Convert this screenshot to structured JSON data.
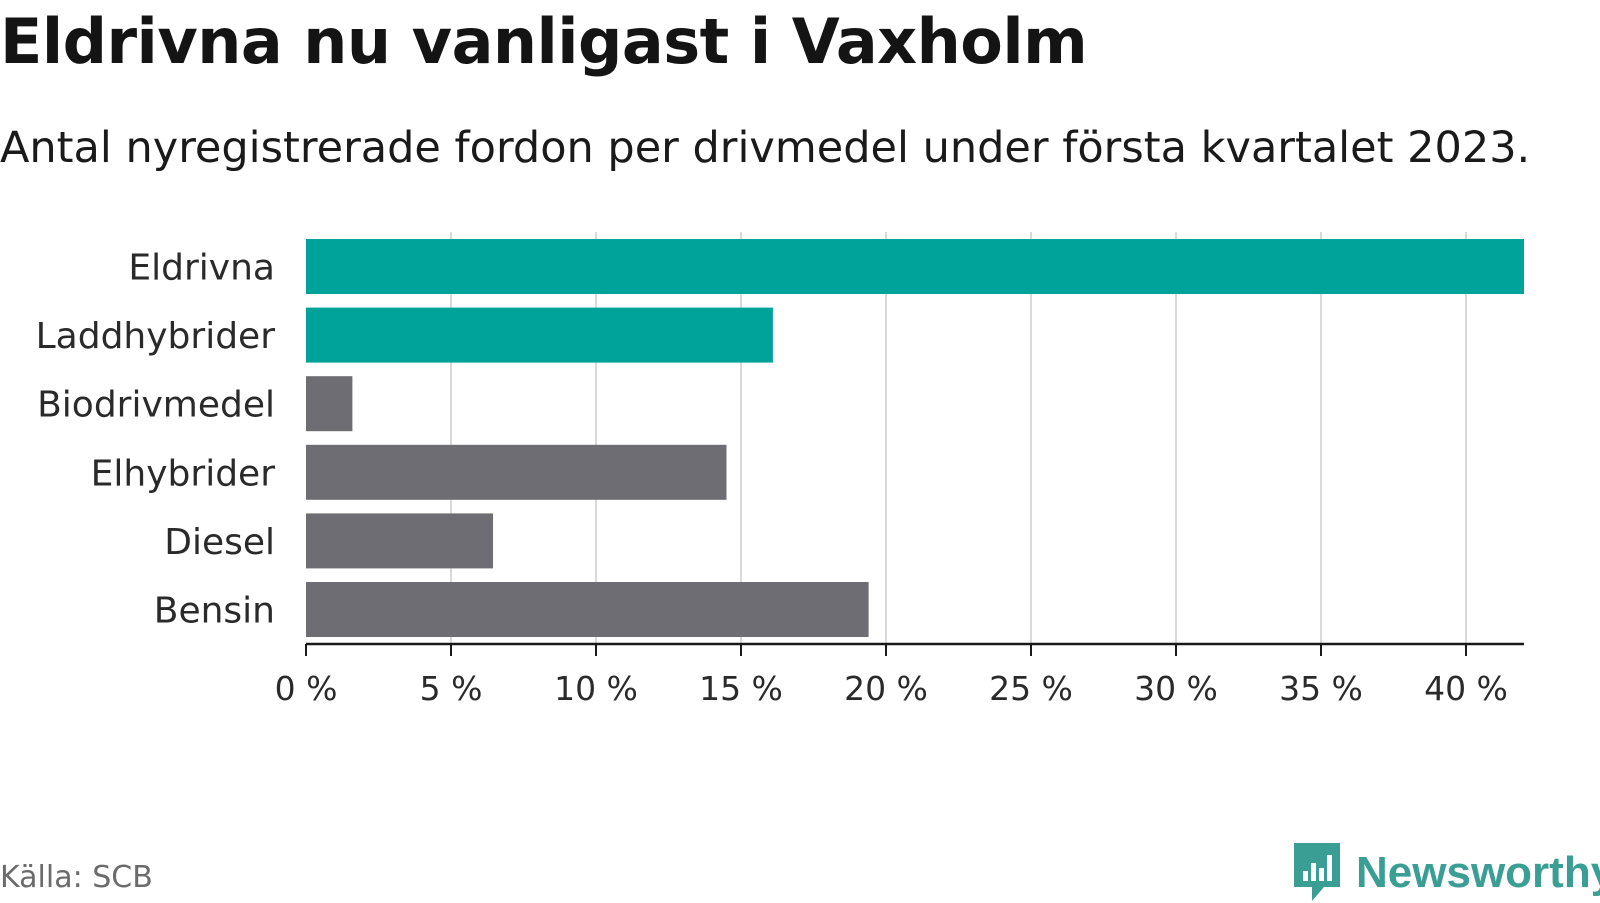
{
  "header": {
    "title": "Eldrivna nu vanligast i Vaxholm",
    "subtitle": "Antal nyregistrerade fordon per drivmedel under första kvartalet 2023."
  },
  "footer": {
    "source": "Källa: SCB",
    "brand": "Newsworthy"
  },
  "colors": {
    "highlight": "#00a39a",
    "default": "#6e6d73",
    "grid": "#d9d9d9",
    "axis": "#1a1a1a",
    "brand": "#3a9e95"
  },
  "chart_data": {
    "type": "bar",
    "orientation": "horizontal",
    "title": "Eldrivna nu vanligast i Vaxholm",
    "xlabel": "",
    "ylabel": "",
    "categories": [
      "Eldrivna",
      "Laddhybrider",
      "Biodrivmedel",
      "Elhybrider",
      "Diesel",
      "Bensin"
    ],
    "values": [
      42,
      16.1,
      1.6,
      14.5,
      6.45,
      19.4
    ],
    "highlighted": [
      true,
      true,
      false,
      false,
      false,
      false
    ],
    "xlim": [
      0,
      42
    ],
    "ticks": [
      0,
      5,
      10,
      15,
      20,
      25,
      30,
      35,
      40
    ],
    "tick_labels": [
      "0 %",
      "5 %",
      "10 %",
      "15 %",
      "20 %",
      "25 %",
      "30 %",
      "35 %",
      "40 %"
    ],
    "grid": true
  }
}
